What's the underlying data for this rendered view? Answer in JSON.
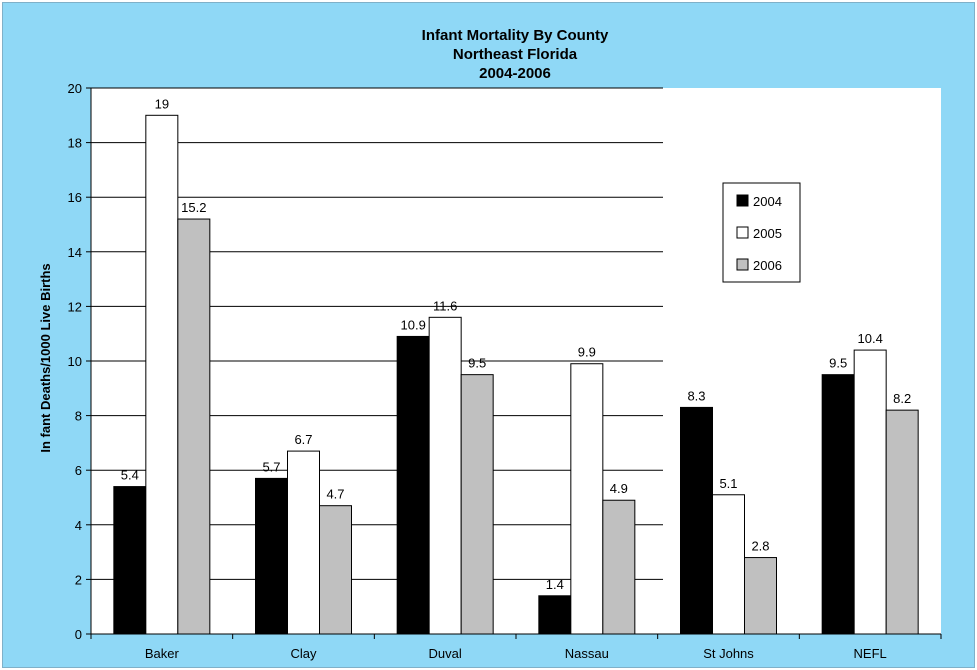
{
  "chart_data": {
    "type": "bar",
    "title": [
      "Infant Mortality By County",
      "Northeast Florida",
      "2004-2006"
    ],
    "xlabel": "",
    "ylabel": "In fant Deaths/1000 Live Births",
    "ylim": [
      0,
      20
    ],
    "yticks": [
      0,
      2,
      4,
      6,
      8,
      10,
      12,
      14,
      16,
      18,
      20
    ],
    "categories": [
      "Baker",
      "Clay",
      "Duval",
      "Nassau",
      "St Johns",
      "NEFL"
    ],
    "series": [
      {
        "name": "2004",
        "color": "#000000",
        "values": [
          5.4,
          5.7,
          10.9,
          1.4,
          8.3,
          9.5
        ],
        "labels": [
          "5.4",
          "5.7",
          "10.9",
          "1.4",
          "8.3",
          "9.5"
        ]
      },
      {
        "name": "2005",
        "color": "#ffffff",
        "values": [
          19,
          6.7,
          11.6,
          9.9,
          5.1,
          10.4
        ],
        "labels": [
          "19",
          "6.7",
          "11.6",
          "9.9",
          "5.1",
          "10.4"
        ]
      },
      {
        "name": "2006",
        "color": "#c0c0c0",
        "values": [
          15.2,
          4.7,
          9.5,
          4.9,
          2.8,
          8.2
        ],
        "labels": [
          "15.2",
          "4.7",
          "9.5",
          "4.9",
          "2.8",
          "8.2"
        ]
      }
    ],
    "grid": true,
    "legend": "right"
  },
  "colors": {
    "background": "#8fd8f6",
    "plot_area": "#ffffff",
    "gridline": "#000000"
  }
}
